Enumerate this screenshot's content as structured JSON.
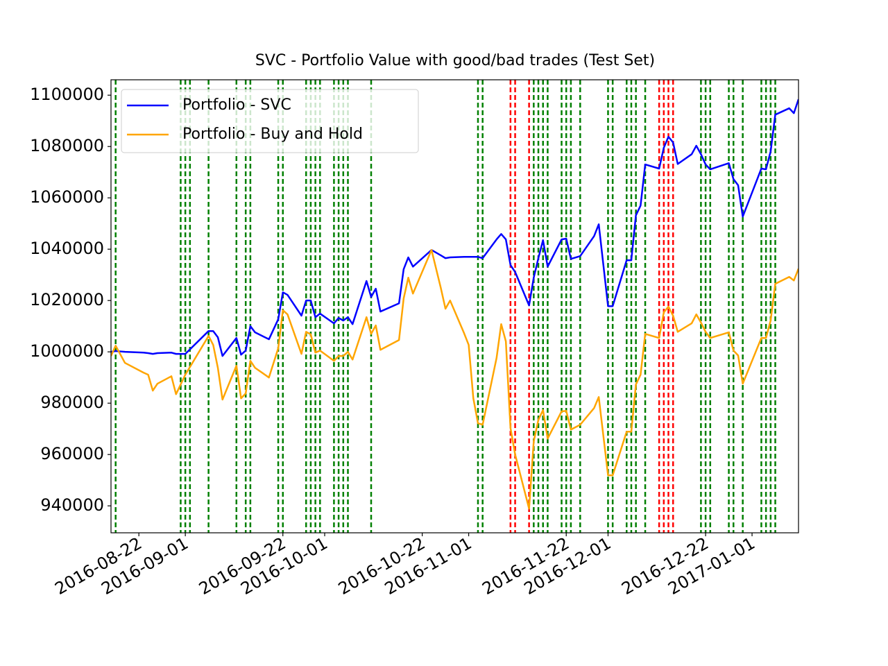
{
  "chart_data": {
    "type": "line",
    "title": "SVC - Portfolio Value with good/bad trades (Test Set)",
    "x": [
      "2016-08-16",
      "2016-08-17",
      "2016-08-19",
      "2016-08-23",
      "2016-08-24",
      "2016-08-25",
      "2016-08-26",
      "2016-08-29",
      "2016-08-30",
      "2016-09-01",
      "2016-09-06",
      "2016-09-07",
      "2016-09-08",
      "2016-09-09",
      "2016-09-12",
      "2016-09-13",
      "2016-09-14",
      "2016-09-15",
      "2016-09-16",
      "2016-09-19",
      "2016-09-21",
      "2016-09-22",
      "2016-09-23",
      "2016-09-26",
      "2016-09-27",
      "2016-09-28",
      "2016-09-29",
      "2016-09-30",
      "2016-10-03",
      "2016-10-04",
      "2016-10-05",
      "2016-10-06",
      "2016-10-07",
      "2016-10-10",
      "2016-10-11",
      "2016-10-12",
      "2016-10-13",
      "2016-10-17",
      "2016-10-18",
      "2016-10-19",
      "2016-10-20",
      "2016-10-24",
      "2016-10-26",
      "2016-10-27",
      "2016-10-28",
      "2016-10-31",
      "2016-11-01",
      "2016-11-02",
      "2016-11-03",
      "2016-11-04",
      "2016-11-07",
      "2016-11-08",
      "2016-11-09",
      "2016-11-10",
      "2016-11-11",
      "2016-11-14",
      "2016-11-15",
      "2016-11-16",
      "2016-11-17",
      "2016-11-18",
      "2016-11-21",
      "2016-11-22",
      "2016-11-23",
      "2016-11-25",
      "2016-11-28",
      "2016-11-29",
      "2016-12-01",
      "2016-12-02",
      "2016-12-05",
      "2016-12-06",
      "2016-12-07",
      "2016-12-08",
      "2016-12-09",
      "2016-12-12",
      "2016-12-13",
      "2016-12-14",
      "2016-12-15",
      "2016-12-16",
      "2016-12-19",
      "2016-12-20",
      "2016-12-21",
      "2016-12-22",
      "2016-12-23",
      "2016-12-27",
      "2016-12-28",
      "2016-12-29",
      "2016-12-30",
      "2017-01-03",
      "2017-01-04",
      "2017-01-05",
      "2017-01-06",
      "2017-01-09",
      "2017-01-10",
      "2017-01-11"
    ],
    "series": [
      {
        "name": "Portfolio - SVC",
        "color": "#0000ff",
        "values": [
          1000000,
          1000300,
          1000000,
          999700,
          999500,
          999200,
          999500,
          999700,
          999200,
          999200,
          1008100,
          1008100,
          1005700,
          998400,
          1005400,
          998900,
          1000500,
          1010000,
          1007600,
          1004900,
          1012700,
          1023200,
          1022200,
          1014100,
          1020000,
          1020000,
          1013500,
          1014900,
          1011100,
          1013200,
          1012200,
          1013500,
          1010800,
          1027600,
          1021400,
          1024600,
          1015700,
          1018900,
          1032200,
          1036800,
          1033200,
          1039700,
          1037600,
          1036500,
          1036800,
          1037000,
          1037000,
          1037000,
          1037000,
          1036500,
          1043800,
          1045900,
          1043800,
          1033800,
          1031100,
          1018100,
          1028900,
          1036500,
          1043500,
          1033200,
          1043800,
          1044100,
          1036200,
          1037300,
          1045100,
          1049700,
          1017800,
          1017800,
          1035700,
          1035700,
          1053200,
          1057000,
          1073000,
          1071400,
          1079500,
          1083800,
          1081600,
          1073200,
          1077000,
          1080300,
          1077000,
          1073000,
          1071100,
          1073500,
          1067300,
          1064900,
          1052700,
          1071400,
          1071100,
          1078100,
          1092400,
          1094900,
          1093000,
          1098400
        ]
      },
      {
        "name": "Portfolio - Buy and Hold",
        "color": "#ffa500",
        "values": [
          998400,
          1002400,
          995700,
          991900,
          991100,
          984900,
          987600,
          990500,
          983500,
          991100,
          1006200,
          1002700,
          993800,
          981400,
          994600,
          981900,
          983800,
          996500,
          993800,
          990000,
          1001400,
          1016200,
          1014600,
          999200,
          1007800,
          1006800,
          999700,
          1000500,
          996500,
          998400,
          998400,
          1000000,
          997000,
          1013500,
          1007000,
          1010300,
          1000800,
          1004600,
          1020800,
          1028900,
          1022700,
          1039700,
          1024900,
          1016800,
          1020000,
          1007300,
          1002700,
          981900,
          972200,
          971600,
          997600,
          1010800,
          1004100,
          970300,
          960000,
          938900,
          965100,
          973500,
          977300,
          966200,
          976800,
          977000,
          969700,
          971600,
          978100,
          982400,
          951900,
          951900,
          968900,
          968900,
          987300,
          991100,
          1007000,
          1005400,
          1015400,
          1017600,
          1014100,
          1007800,
          1011100,
          1014600,
          1011400,
          1007800,
          1005400,
          1007600,
          1000500,
          998600,
          987600,
          1005400,
          1005400,
          1012200,
          1026500,
          1029200,
          1027800,
          1032400
        ]
      }
    ],
    "good_trades": {
      "color": "#008000",
      "x": [
        "2016-08-17",
        "2016-08-31",
        "2016-09-01",
        "2016-09-02",
        "2016-09-06",
        "2016-09-12",
        "2016-09-14",
        "2016-09-15",
        "2016-09-21",
        "2016-09-22",
        "2016-09-27",
        "2016-09-28",
        "2016-09-29",
        "2016-09-30",
        "2016-10-03",
        "2016-10-04",
        "2016-10-05",
        "2016-10-06",
        "2016-10-11",
        "2016-11-03",
        "2016-11-04",
        "2016-11-15",
        "2016-11-16",
        "2016-11-17",
        "2016-11-18",
        "2016-11-21",
        "2016-11-22",
        "2016-11-23",
        "2016-11-25",
        "2016-12-01",
        "2016-12-02",
        "2016-12-05",
        "2016-12-06",
        "2016-12-07",
        "2016-12-09",
        "2016-12-21",
        "2016-12-22",
        "2016-12-23",
        "2016-12-27",
        "2016-12-28",
        "2016-12-30",
        "2017-01-03",
        "2017-01-04",
        "2017-01-05",
        "2017-01-06"
      ]
    },
    "bad_trades": {
      "color": "#ff0000",
      "x": [
        "2016-11-10",
        "2016-11-11",
        "2016-11-14",
        "2016-12-12",
        "2016-12-13",
        "2016-12-14",
        "2016-12-15"
      ]
    },
    "xlim": [
      "2016-08-16",
      "2017-01-11"
    ],
    "xticks": [
      "2016-08-22",
      "2016-09-01",
      "2016-09-22",
      "2016-10-01",
      "2016-10-22",
      "2016-11-01",
      "2016-11-22",
      "2016-12-01",
      "2016-12-22",
      "2017-01-01"
    ],
    "ylim": [
      929500,
      1106000
    ],
    "yticks": [
      940000,
      960000,
      980000,
      1000000,
      1020000,
      1040000,
      1060000,
      1080000,
      1100000
    ],
    "legend": "upper left"
  }
}
